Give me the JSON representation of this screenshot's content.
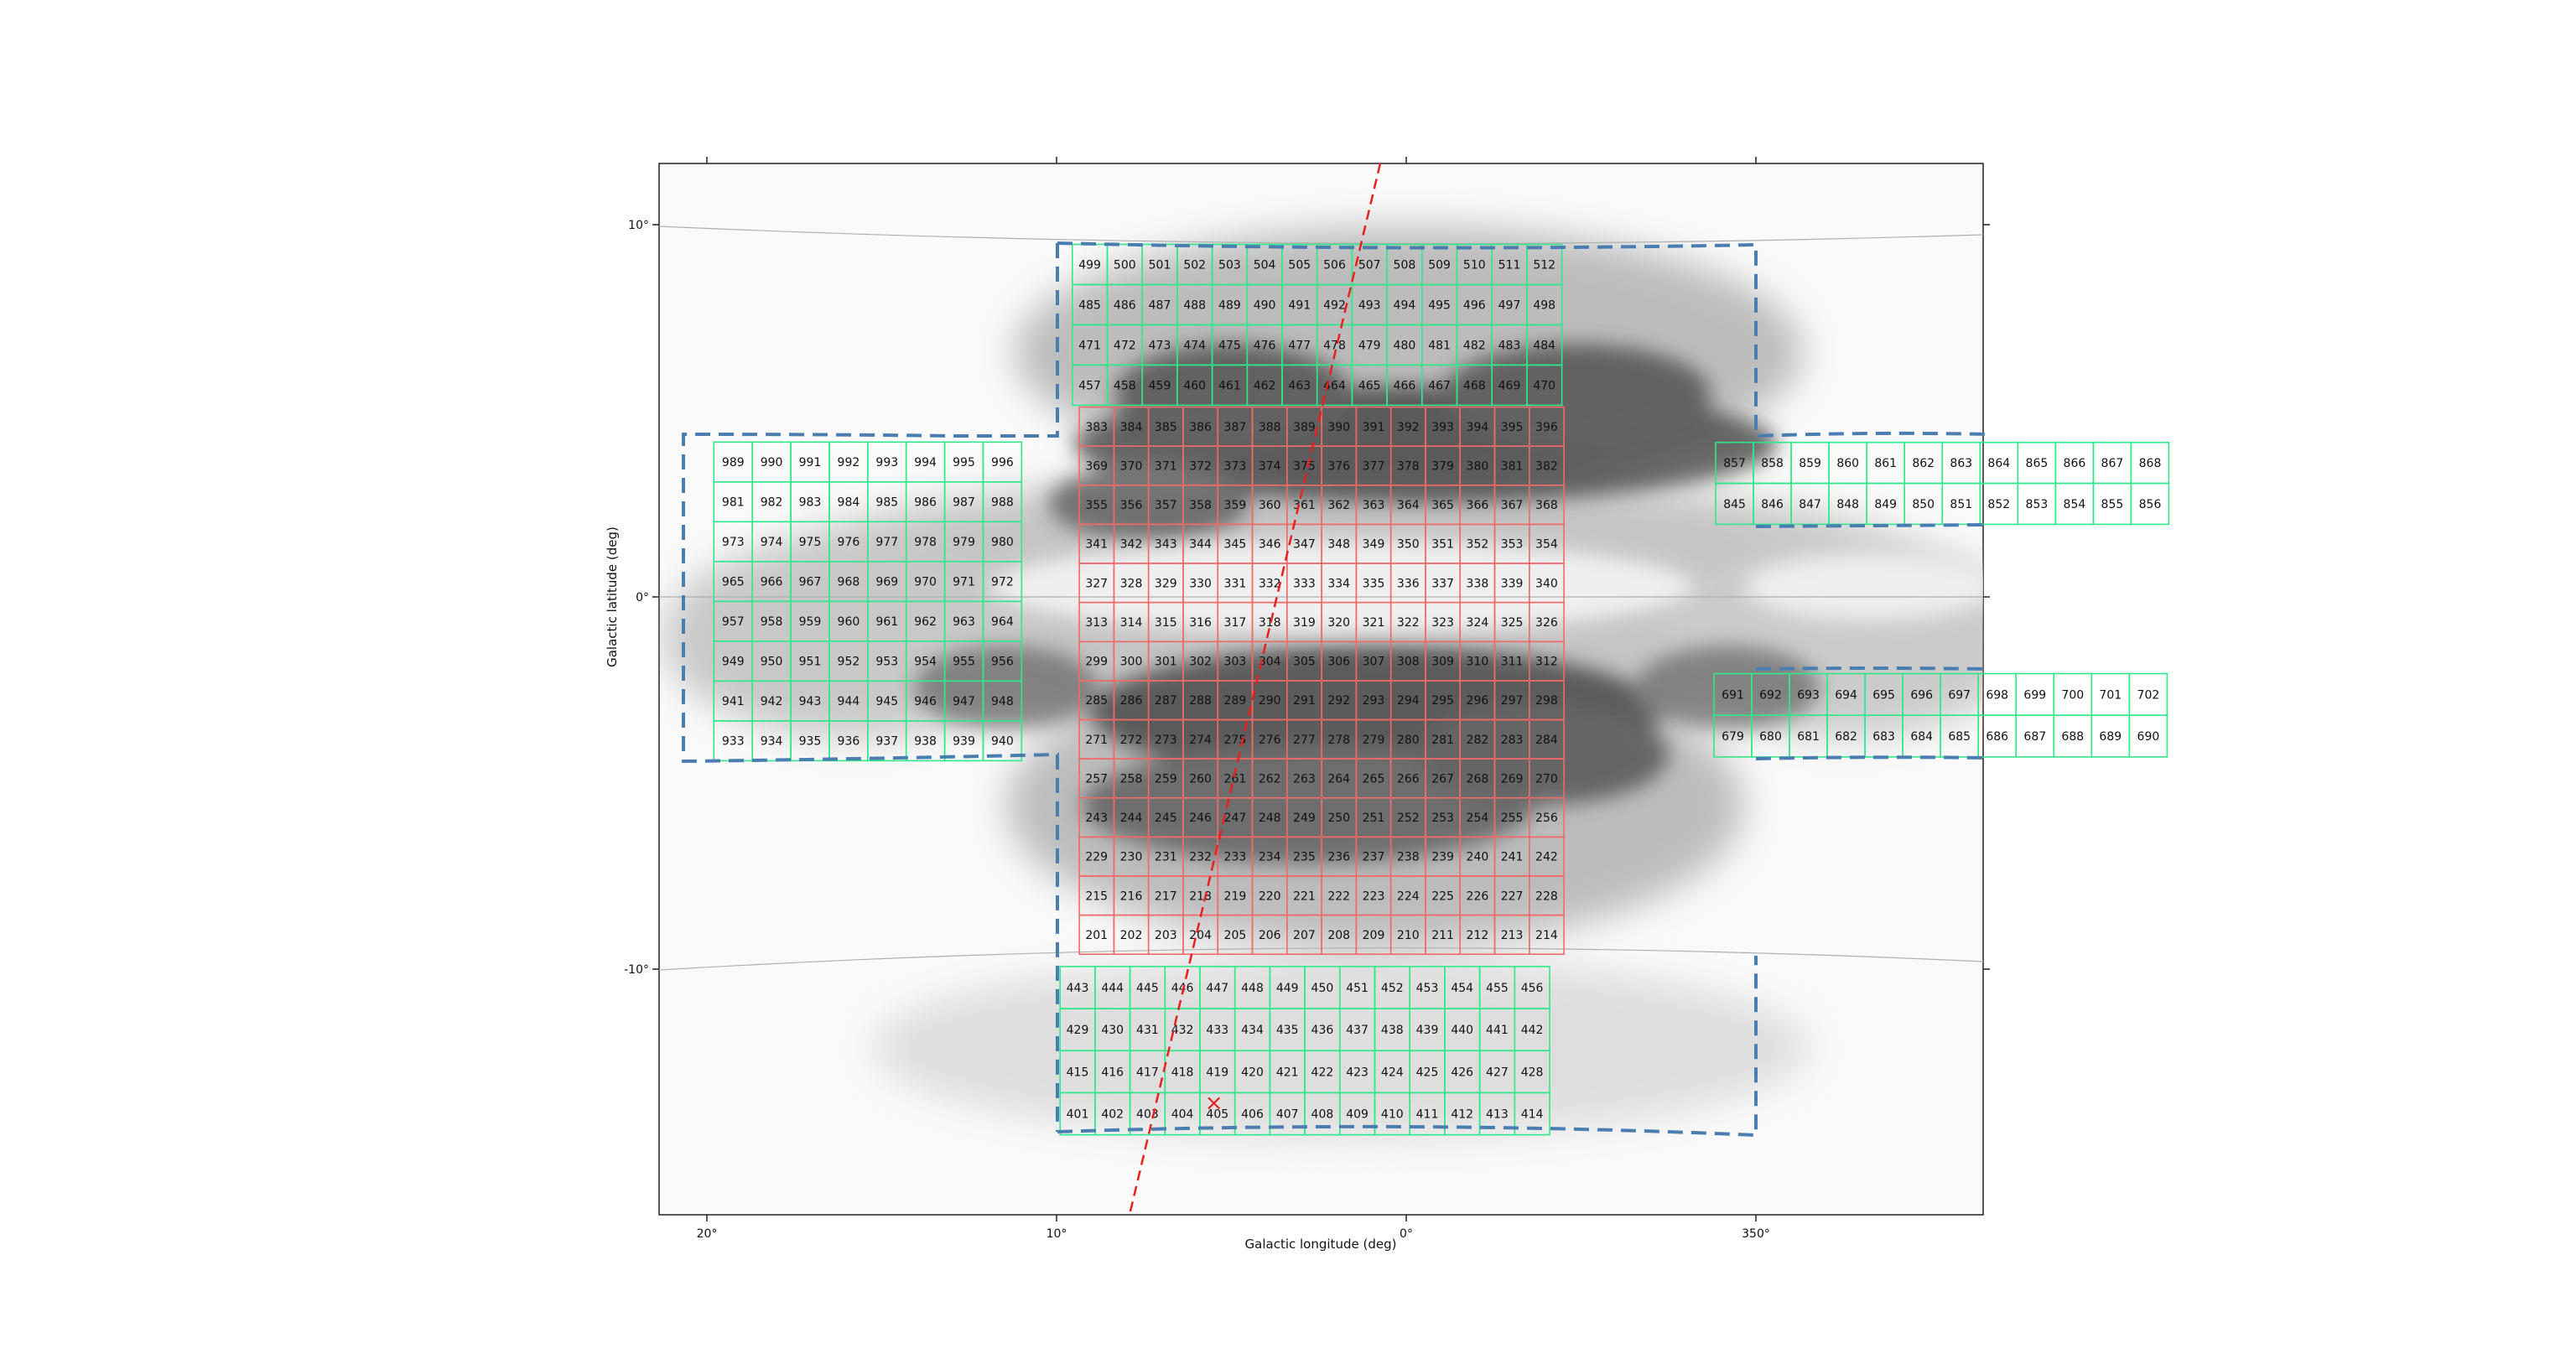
{
  "xlabel": "Galactic longitude (deg)",
  "ylabel": "Galactic latitude (deg)",
  "x_ticks": [
    {
      "label": "20°",
      "l": 20
    },
    {
      "label": "10°",
      "l": 10
    },
    {
      "label": "0°",
      "l": 0
    },
    {
      "label": "350°",
      "l": -10
    }
  ],
  "y_ticks": [
    {
      "label": "10°",
      "b": 10
    },
    {
      "label": "0°",
      "b": 0
    },
    {
      "label": "-10°",
      "b": -10
    }
  ],
  "colors": {
    "grid_red": "#f06a6a",
    "grid_green": "#2ee88a",
    "outline": "#4a7eb0",
    "dust": "#2b2b2b",
    "galactic_plane_line": "#e8201e",
    "marker": "#e8201e"
  },
  "marker": {
    "symbol": "×",
    "l": 5.5,
    "b": -13.6
  },
  "grids": [
    {
      "name": "bulge-center",
      "color": "red",
      "first": 201,
      "cols": 14,
      "rows": 14,
      "l_left": 9.35,
      "b_bottom": -9.6,
      "step_l": 0.99,
      "step_b": 1.05
    },
    {
      "name": "north-block",
      "color": "green",
      "first": 457,
      "cols": 14,
      "rows": 4,
      "l_left": 9.55,
      "b_bottom": 5.15,
      "step_l": 1.0,
      "step_b": 1.08
    },
    {
      "name": "south-block",
      "color": "green",
      "first": 401,
      "cols": 14,
      "rows": 4,
      "l_left": 9.9,
      "b_bottom": -14.45,
      "step_l": 1.0,
      "step_b": 1.13
    },
    {
      "name": "west-disk",
      "color": "green",
      "first": 933,
      "cols": 8,
      "rows": 8,
      "l_left": 19.8,
      "b_bottom": -4.4,
      "step_l": 1.1,
      "step_b": 1.07
    },
    {
      "name": "east-disk-north",
      "color": "green",
      "first": 845,
      "cols": 12,
      "rows": 2,
      "l_left": -8.85,
      "b_bottom": 1.95,
      "step_l": 1.08,
      "step_b": 1.1
    },
    {
      "name": "east-disk-south",
      "color": "green",
      "first": 679,
      "cols": 12,
      "rows": 2,
      "l_left": -8.8,
      "b_bottom": -4.3,
      "step_l": 1.08,
      "step_b": 1.12
    }
  ]
}
